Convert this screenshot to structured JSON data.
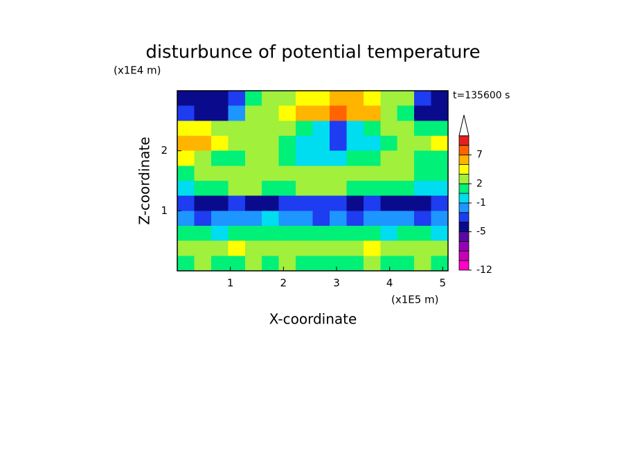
{
  "chart_data": {
    "type": "contour",
    "title": "disturbunce of potential temperature",
    "y_unit": "(x1E4 m)",
    "x_unit": "(x1E5 m)",
    "time_label": "t=135600 s",
    "xlabel": "X-coordinate",
    "ylabel": "Z-coordinate",
    "xlim": [
      0,
      5.1
    ],
    "ylim": [
      0,
      3
    ],
    "xticks": [
      1,
      2,
      3,
      4,
      5
    ],
    "yticks": [
      1,
      2
    ],
    "levels": [
      -12,
      -10,
      -8,
      -7,
      -5,
      -4,
      -2,
      -1,
      0,
      2,
      3,
      5,
      7,
      9,
      11
    ],
    "colors": [
      "#ff00c8",
      "#c800b4",
      "#9600b4",
      "#5a0aa0",
      "#0a0a8c",
      "#1e3cf0",
      "#1e96ff",
      "#00dcf0",
      "#00f078",
      "#a0f03c",
      "#ffff00",
      "#ffb400",
      "#ff6400",
      "#e61e1e",
      "#f5b4b4"
    ],
    "colorbar_ticks": [
      -12,
      -5,
      -1,
      2,
      7
    ],
    "z": [
      [
        -4.5,
        -4.5,
        -4.5,
        -3,
        1,
        2.5,
        2.5,
        4,
        4,
        6,
        6,
        4,
        2.5,
        2.5,
        -3,
        -4.5
      ],
      [
        -3,
        -4.5,
        -4.5,
        -1.5,
        2.5,
        2.5,
        4,
        6,
        6,
        8,
        6,
        6,
        2.5,
        1,
        -4.5,
        -4.5
      ],
      [
        4,
        4,
        2.5,
        2.5,
        2.5,
        2.5,
        2.5,
        1,
        -0.5,
        -3,
        -0.5,
        1,
        2.5,
        2.5,
        1,
        1
      ],
      [
        6,
        6,
        4,
        2.5,
        2.5,
        2.5,
        1,
        -0.5,
        -0.5,
        -3,
        -0.5,
        -0.5,
        1,
        2.5,
        2.5,
        4
      ],
      [
        4,
        2.5,
        1,
        1,
        2.5,
        2.5,
        1,
        -0.5,
        -0.5,
        -0.5,
        1,
        1,
        2.5,
        2.5,
        1,
        1
      ],
      [
        1,
        2.5,
        2.5,
        2.5,
        2.5,
        2.5,
        2.5,
        2.5,
        2.5,
        2.5,
        2.5,
        2.5,
        2.5,
        2.5,
        1,
        1
      ],
      [
        -0.5,
        1,
        1,
        2.5,
        2.5,
        1,
        1,
        2.5,
        2.5,
        2.5,
        1,
        1,
        1,
        1,
        -0.5,
        -0.5
      ],
      [
        -3,
        -4.5,
        -4.5,
        -3,
        -4.5,
        -4.5,
        -3,
        -3,
        -3,
        -3,
        -4.5,
        -3,
        -4.5,
        -4.5,
        -4.5,
        -3
      ],
      [
        -1.5,
        -3,
        -1.5,
        -1.5,
        -1.5,
        -0.5,
        -1.5,
        -1.5,
        -3,
        -1.5,
        -3,
        -1.5,
        -1.5,
        -1.5,
        -3,
        -1.5
      ],
      [
        1,
        1,
        -0.5,
        1,
        1,
        1,
        1,
        1,
        1,
        1,
        1,
        1,
        -0.5,
        1,
        1,
        -0.5
      ],
      [
        2.5,
        2.5,
        2.5,
        4,
        2.5,
        2.5,
        2.5,
        2.5,
        2.5,
        2.5,
        2.5,
        4,
        2.5,
        2.5,
        2.5,
        2.5
      ],
      [
        1,
        2.5,
        1,
        1,
        2.5,
        1,
        2.5,
        1,
        1,
        1,
        1,
        2.5,
        1,
        1,
        2.5,
        1
      ]
    ]
  }
}
